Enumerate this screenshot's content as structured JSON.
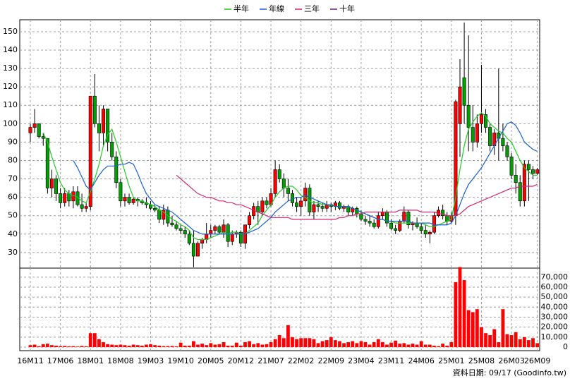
{
  "chart_data": {
    "type": "candlestick",
    "grid": true,
    "legend": "top",
    "footer": "資料日期: 09/17 (Goodinfo.tw)",
    "up_color": "#ff0000",
    "down_color": "#00a000",
    "categories": [
      "16M11",
      null,
      null,
      null,
      null,
      null,
      null,
      "17M06",
      null,
      null,
      null,
      null,
      null,
      null,
      "18M01",
      null,
      null,
      null,
      null,
      null,
      null,
      "18M08",
      null,
      null,
      null,
      null,
      null,
      null,
      "19M03",
      null,
      null,
      null,
      null,
      null,
      null,
      "19M10",
      null,
      null,
      null,
      null,
      null,
      null,
      "20M05",
      null,
      null,
      null,
      null,
      null,
      null,
      "20M12",
      null,
      null,
      null,
      null,
      null,
      null,
      "21M07",
      null,
      null,
      null,
      null,
      null,
      null,
      "22M02",
      null,
      null,
      null,
      null,
      null,
      null,
      "22M09",
      null,
      null,
      null,
      null,
      null,
      null,
      "23M04",
      null,
      null,
      null,
      null,
      null,
      null,
      "23M11",
      null,
      null,
      null,
      null,
      null,
      null,
      "24M06",
      null,
      null,
      null,
      null,
      null,
      null,
      "25M01",
      null,
      null,
      null,
      null,
      null,
      null,
      "25M08",
      null,
      null,
      null,
      null,
      null,
      null,
      "26M03",
      null,
      null,
      null,
      null,
      null,
      "26M09"
    ],
    "ohlc": [
      [
        95,
        100,
        90,
        98
      ],
      [
        98,
        108,
        95,
        100
      ],
      [
        100,
        100,
        92,
        93
      ],
      [
        93,
        95,
        88,
        92
      ],
      [
        92,
        92,
        62,
        65
      ],
      [
        65,
        75,
        60,
        70
      ],
      [
        70,
        72,
        58,
        62
      ],
      [
        62,
        65,
        54,
        57
      ],
      [
        57,
        65,
        55,
        62
      ],
      [
        62,
        64,
        55,
        58
      ],
      [
        58,
        66,
        54,
        63
      ],
      [
        63,
        66,
        55,
        56
      ],
      [
        56,
        62,
        52,
        54
      ],
      [
        54,
        57,
        52,
        55
      ],
      [
        55,
        115,
        53,
        115
      ],
      [
        115,
        127,
        98,
        100
      ],
      [
        100,
        110,
        85,
        95
      ],
      [
        95,
        110,
        88,
        108
      ],
      [
        108,
        108,
        85,
        90
      ],
      [
        90,
        95,
        80,
        82
      ],
      [
        82,
        85,
        65,
        68
      ],
      [
        68,
        70,
        55,
        58
      ],
      [
        58,
        62,
        55,
        60
      ],
      [
        60,
        62,
        56,
        57
      ],
      [
        57,
        60,
        56,
        59
      ],
      [
        59,
        60,
        55,
        58
      ],
      [
        58,
        59,
        56,
        57
      ],
      [
        57,
        60,
        54,
        56
      ],
      [
        56,
        58,
        53,
        54
      ],
      [
        54,
        56,
        52,
        53
      ],
      [
        53,
        55,
        46,
        48
      ],
      [
        48,
        56,
        45,
        53
      ],
      [
        53,
        55,
        44,
        46
      ],
      [
        46,
        50,
        44,
        45
      ],
      [
        45,
        47,
        42,
        43
      ],
      [
        43,
        45,
        40,
        42
      ],
      [
        42,
        44,
        38,
        40
      ],
      [
        40,
        42,
        34,
        35
      ],
      [
        35,
        42,
        22,
        28
      ],
      [
        28,
        36,
        28,
        35
      ],
      [
        35,
        38,
        32,
        37
      ],
      [
        37,
        46,
        35,
        40
      ],
      [
        40,
        45,
        38,
        42
      ],
      [
        42,
        45,
        40,
        44
      ],
      [
        44,
        45,
        40,
        41
      ],
      [
        41,
        48,
        38,
        45
      ],
      [
        45,
        46,
        33,
        36
      ],
      [
        36,
        42,
        34,
        40
      ],
      [
        40,
        42,
        38,
        41
      ],
      [
        41,
        42,
        33,
        35
      ],
      [
        35,
        45,
        32,
        45
      ],
      [
        45,
        52,
        43,
        50
      ],
      [
        50,
        57,
        48,
        55
      ],
      [
        55,
        58,
        45,
        52
      ],
      [
        52,
        60,
        50,
        58
      ],
      [
        58,
        60,
        54,
        56
      ],
      [
        56,
        65,
        55,
        62
      ],
      [
        62,
        80,
        60,
        75
      ],
      [
        75,
        78,
        68,
        70
      ],
      [
        70,
        73,
        60,
        65
      ],
      [
        65,
        70,
        58,
        62
      ],
      [
        62,
        64,
        55,
        57
      ],
      [
        57,
        60,
        52,
        55
      ],
      [
        55,
        60,
        50,
        58
      ],
      [
        58,
        68,
        55,
        65
      ],
      [
        65,
        67,
        50,
        52
      ],
      [
        52,
        58,
        48,
        56
      ],
      [
        56,
        58,
        52,
        55
      ],
      [
        55,
        57,
        52,
        54
      ],
      [
        54,
        58,
        52,
        56
      ],
      [
        56,
        57,
        52,
        55
      ],
      [
        55,
        58,
        53,
        57
      ],
      [
        57,
        58,
        53,
        54
      ],
      [
        54,
        56,
        52,
        55
      ],
      [
        55,
        56,
        50,
        52
      ],
      [
        52,
        55,
        50,
        54
      ],
      [
        54,
        55,
        49,
        51
      ],
      [
        51,
        53,
        47,
        48
      ],
      [
        48,
        50,
        45,
        47
      ],
      [
        47,
        50,
        44,
        46
      ],
      [
        46,
        48,
        43,
        44
      ],
      [
        44,
        52,
        43,
        50
      ],
      [
        50,
        54,
        48,
        52
      ],
      [
        52,
        53,
        44,
        46
      ],
      [
        46,
        48,
        42,
        43
      ],
      [
        43,
        45,
        40,
        42
      ],
      [
        42,
        48,
        41,
        47
      ],
      [
        47,
        55,
        46,
        52
      ],
      [
        52,
        53,
        43,
        45
      ],
      [
        45,
        47,
        42,
        46
      ],
      [
        46,
        49,
        43,
        44
      ],
      [
        44,
        46,
        40,
        42
      ],
      [
        42,
        45,
        38,
        40
      ],
      [
        40,
        42,
        35,
        41
      ],
      [
        41,
        52,
        40,
        50
      ],
      [
        50,
        55,
        49,
        53
      ],
      [
        53,
        56,
        48,
        50
      ],
      [
        50,
        52,
        45,
        47
      ],
      [
        47,
        52,
        46,
        50
      ],
      [
        50,
        113,
        45,
        112
      ],
      [
        100,
        135,
        82,
        120
      ],
      [
        125,
        155,
        100,
        110
      ],
      [
        110,
        148,
        85,
        98
      ],
      [
        98,
        110,
        85,
        90
      ],
      [
        90,
        105,
        87,
        100
      ],
      [
        100,
        132,
        95,
        105
      ],
      [
        105,
        108,
        95,
        98
      ],
      [
        98,
        100,
        85,
        88
      ],
      [
        88,
        97,
        83,
        95
      ],
      [
        95,
        130,
        80,
        92
      ],
      [
        92,
        100,
        85,
        88
      ],
      [
        88,
        90,
        80,
        82
      ],
      [
        82,
        84,
        70,
        72
      ],
      [
        72,
        78,
        62,
        68
      ],
      [
        68,
        72,
        55,
        58
      ],
      [
        58,
        80,
        55,
        78
      ],
      [
        78,
        80,
        58,
        75
      ],
      [
        75,
        77,
        70,
        73
      ],
      [
        73,
        76,
        72,
        75
      ]
    ],
    "ylim": [
      21.5,
      156.5
    ],
    "yticks": [
      30,
      40,
      50,
      60,
      70,
      80,
      90,
      100,
      110,
      120,
      130,
      140,
      150
    ],
    "series": [
      {
        "name": "半年",
        "color": "#22cc22",
        "values": [
          null,
          null,
          null,
          95,
          90,
          82,
          75,
          68,
          64,
          62,
          61,
          60,
          58,
          57,
          63,
          70,
          78,
          88,
          94,
          97,
          90,
          82,
          74,
          66,
          60,
          58,
          58,
          57,
          56,
          55,
          53,
          52,
          50,
          48,
          47,
          45,
          44,
          42,
          38,
          37,
          37,
          37,
          38,
          39,
          40,
          41,
          40,
          41,
          41,
          40,
          40,
          42,
          44,
          46,
          50,
          53,
          56,
          60,
          63,
          65,
          66,
          66,
          64,
          61,
          60,
          58,
          57,
          57,
          56,
          56,
          56,
          55,
          55,
          55,
          55,
          54,
          53,
          52,
          51,
          50,
          49,
          48,
          48,
          47,
          47,
          46,
          46,
          46,
          46,
          46,
          46,
          46,
          45,
          44,
          44,
          45,
          46,
          47,
          48,
          60,
          75,
          88,
          97,
          101,
          104,
          106,
          104,
          100,
          98,
          96,
          95,
          92,
          90,
          85,
          80,
          76,
          74,
          72,
          72
        ]
      },
      {
        "name": "年線",
        "color": "#1a5fd6",
        "values": [
          null,
          null,
          null,
          null,
          null,
          null,
          null,
          null,
          null,
          null,
          80,
          76,
          71,
          66,
          64,
          68,
          72,
          75,
          77,
          77,
          77,
          78,
          78,
          79,
          78,
          73,
          67,
          62,
          59,
          56,
          55,
          54,
          53,
          52,
          50,
          48,
          46,
          44,
          42,
          41,
          40,
          40,
          40,
          40,
          40,
          40,
          40,
          40,
          40,
          40,
          40,
          41,
          42,
          43,
          45,
          47,
          49,
          52,
          54,
          56,
          58,
          59,
          60,
          60,
          61,
          60,
          59,
          58,
          57,
          56,
          56,
          55,
          55,
          55,
          55,
          54,
          53,
          52,
          51,
          50,
          49,
          48,
          48,
          47,
          47,
          47,
          47,
          47,
          47,
          46,
          46,
          46,
          46,
          46,
          45,
          45,
          45,
          45,
          46,
          50,
          56,
          62,
          67,
          70,
          73,
          76,
          80,
          84,
          88,
          92,
          96,
          100,
          101,
          99,
          95,
          90,
          88,
          86,
          85
        ]
      },
      {
        "name": "三年",
        "color": "#d6246e",
        "values": [
          null,
          null,
          null,
          null,
          null,
          null,
          null,
          null,
          null,
          null,
          null,
          null,
          null,
          null,
          null,
          null,
          null,
          null,
          null,
          null,
          null,
          null,
          null,
          null,
          null,
          null,
          null,
          null,
          null,
          null,
          null,
          null,
          null,
          null,
          72,
          70,
          68,
          66,
          64,
          62,
          61,
          60,
          60,
          59,
          58,
          58,
          57,
          57,
          56,
          56,
          55,
          54,
          53,
          52,
          51,
          50,
          49,
          49,
          49,
          49,
          49,
          48,
          48,
          48,
          48,
          48,
          48,
          48,
          48,
          48,
          48,
          48,
          49,
          49,
          50,
          50,
          51,
          51,
          52,
          52,
          52,
          52,
          52,
          52,
          52,
          52,
          53,
          53,
          53,
          53,
          53,
          52,
          52,
          52,
          52,
          51,
          51,
          50,
          50,
          50,
          51,
          53,
          55,
          56,
          57,
          58,
          59,
          60,
          61,
          62,
          63,
          64,
          65,
          65,
          66,
          66,
          66,
          66,
          67
        ]
      },
      {
        "name": "十年",
        "color": "#6a1a8a",
        "values": [
          null,
          null,
          null,
          null,
          null,
          null,
          null,
          null,
          null,
          null,
          null,
          null,
          null,
          null,
          null,
          null,
          null,
          null,
          null,
          null,
          null,
          null,
          null,
          null,
          null,
          null,
          null,
          null,
          null,
          null,
          null,
          null,
          null,
          null,
          null,
          null,
          null,
          null,
          null,
          null,
          null,
          null,
          null,
          null,
          null,
          null,
          null,
          null,
          null,
          null,
          null,
          null,
          null,
          null,
          null,
          null,
          null,
          null,
          null,
          null,
          null,
          null,
          null,
          null,
          null,
          null,
          null,
          null,
          null,
          null,
          null,
          null,
          null,
          null,
          null,
          null,
          null,
          null,
          null,
          null,
          null,
          null,
          null,
          null,
          null,
          null,
          null,
          null,
          null,
          null,
          null,
          null,
          null,
          null,
          null,
          null,
          null,
          null,
          null,
          null,
          null,
          null,
          null,
          null,
          null,
          null,
          null,
          null,
          null,
          null,
          null,
          null,
          null,
          null,
          null,
          null,
          null,
          null,
          null
        ]
      }
    ],
    "volume": {
      "color": "#ff0000",
      "values": [
        2000,
        2500,
        1000,
        3000,
        3500,
        2000,
        1500,
        1000,
        1200,
        800,
        1000,
        600,
        1200,
        800,
        14000,
        14000,
        8000,
        5000,
        3000,
        2500,
        2000,
        2500,
        2000,
        1500,
        2500,
        2000,
        1500,
        2500,
        3000,
        2000,
        1500,
        1000,
        1000,
        1200,
        800,
        4500,
        1500,
        1500,
        6000,
        2500,
        3500,
        2000,
        4000,
        2500,
        3000,
        5000,
        1500,
        1500,
        4500,
        1500,
        5000,
        6000,
        3000,
        4000,
        2500,
        3000,
        5000,
        8000,
        12000,
        9000,
        22000,
        10000,
        8000,
        9000,
        9000,
        9000,
        8000,
        4000,
        6000,
        7000,
        10000,
        7000,
        6000,
        4000,
        5000,
        6000,
        4000,
        6000,
        5000,
        2500,
        5000,
        8000,
        5000,
        2500,
        4500,
        6500,
        3500,
        4000,
        2500,
        3500,
        2500,
        6000,
        2500,
        2500,
        1500,
        1000,
        3500,
        1500,
        5000,
        65000,
        80000,
        67000,
        37000,
        35000,
        38000,
        20000,
        14000,
        12000,
        18000,
        5000,
        38000,
        13000,
        12000,
        15000,
        8000,
        10000,
        7000,
        9000,
        4000
      ],
      "ylim": [
        -3500,
        79000
      ],
      "yticks": [
        0,
        {
          "value": 10000,
          "label": "10,000"
        },
        {
          "value": 20000,
          "label": "20,000"
        },
        {
          "value": 30000,
          "label": "30,000"
        },
        {
          "value": 40000,
          "label": "40,000"
        },
        {
          "value": 50000,
          "label": "50,000"
        },
        {
          "value": 60000,
          "label": "60,000"
        },
        {
          "value": 70000,
          "label": "70,000"
        }
      ]
    }
  }
}
